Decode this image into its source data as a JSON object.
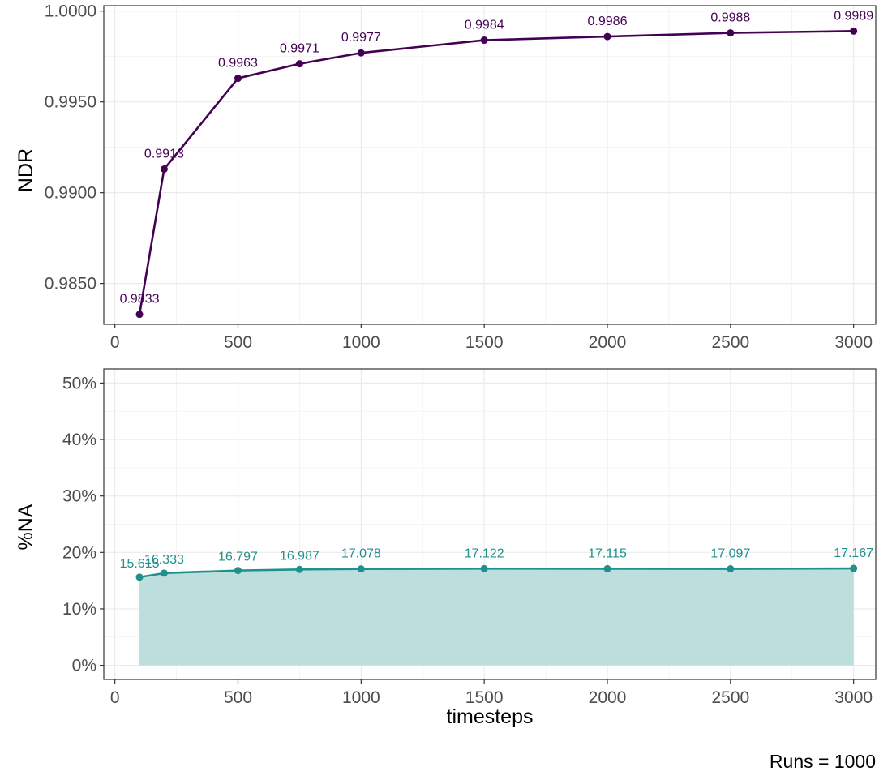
{
  "chart_data": [
    {
      "type": "line",
      "xlabel": "",
      "ylabel": "NDR",
      "x": [
        100,
        200,
        500,
        750,
        1000,
        1500,
        2000,
        2500,
        3000
      ],
      "values": [
        0.9833,
        0.9913,
        0.9963,
        0.9971,
        0.9977,
        0.9984,
        0.9986,
        0.9988,
        0.9989
      ],
      "data_labels": [
        "0.9833",
        "0.9913",
        "0.9963",
        "0.9971",
        "0.9977",
        "0.9984",
        "0.9986",
        "0.9988",
        "0.9989"
      ],
      "x_ticks": [
        0,
        500,
        1000,
        1500,
        2000,
        2500,
        3000
      ],
      "x_tick_labels": [
        "0",
        "500",
        "1000",
        "1500",
        "2000",
        "2500",
        "3000"
      ],
      "y_ticks": [
        0.985,
        0.99,
        0.995,
        1.0
      ],
      "y_tick_labels": [
        "0.9850",
        "0.9900",
        "0.9950",
        "1.0000"
      ],
      "xlim": [
        -45,
        3090
      ],
      "ylim": [
        0.98275,
        1.0003
      ],
      "color": "#440154",
      "grid": true
    },
    {
      "type": "area",
      "xlabel": "timesteps",
      "ylabel": "%NA",
      "x": [
        100,
        200,
        500,
        750,
        1000,
        1500,
        2000,
        2500,
        3000
      ],
      "values": [
        15.615,
        16.333,
        16.797,
        16.987,
        17.078,
        17.122,
        17.115,
        17.097,
        17.167
      ],
      "data_labels": [
        "15.615",
        "16.333",
        "16.797",
        "16.987",
        "17.078",
        "17.122",
        "17.115",
        "17.097",
        "17.167"
      ],
      "x_ticks": [
        0,
        500,
        1000,
        1500,
        2000,
        2500,
        3000
      ],
      "x_tick_labels": [
        "0",
        "500",
        "1000",
        "1500",
        "2000",
        "2500",
        "3000"
      ],
      "y_ticks": [
        0,
        10,
        20,
        30,
        40,
        50
      ],
      "y_tick_labels": [
        "0%",
        "10%",
        "20%",
        "30%",
        "40%",
        "50%"
      ],
      "xlim": [
        -45,
        3090
      ],
      "ylim": [
        -2.5,
        52.5
      ],
      "color": "#21908C",
      "fill_color": "#bcdfde",
      "grid": true
    }
  ],
  "caption": "Runs = 1000"
}
